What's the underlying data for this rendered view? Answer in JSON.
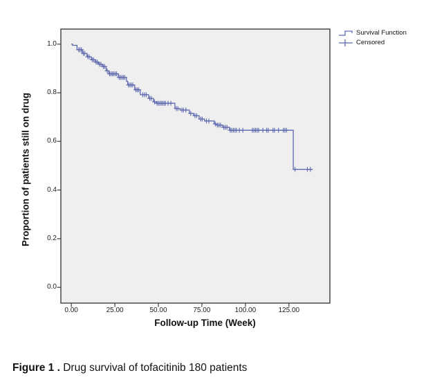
{
  "figure": {
    "caption_bold": "Figure 1 .",
    "caption_text": " Drug survival of tofacitinib 180 patients"
  },
  "legend": {
    "items": [
      {
        "symbol": "step-line",
        "label": "Survival Function"
      },
      {
        "symbol": "plus-cross",
        "label": "Censored"
      }
    ]
  },
  "chart_data": {
    "type": "line",
    "subtype": "kaplan-meier-step",
    "title": "",
    "xlabel": "Follow-up Time (Week)",
    "ylabel": "Proportion of patients still on drug",
    "xlim": [
      -6,
      148.5
    ],
    "ylim": [
      -0.065,
      1.062
    ],
    "x_ticks": [
      0,
      25,
      50,
      75,
      100,
      125
    ],
    "x_tick_labels": [
      "0.00",
      "25.00",
      "50.00",
      "75.00",
      "100.00",
      "125.00"
    ],
    "y_ticks": [
      0.0,
      0.2,
      0.4,
      0.6,
      0.8,
      1.0
    ],
    "y_tick_labels": [
      "0.0",
      "0.2",
      "0.4",
      "0.6",
      "0.8",
      "1.0"
    ],
    "grid": false,
    "legend_position": "top-right-outside",
    "plot_bg": "#efefef",
    "plot_border": "#3c3c3c",
    "series": [
      {
        "name": "Survival Function",
        "color": "#5b67ae",
        "end_week": 138.5,
        "steps": [
          [
            0,
            1.0
          ],
          [
            0.7,
            0.995
          ],
          [
            3.3,
            0.977
          ],
          [
            6.4,
            0.962
          ],
          [
            9.0,
            0.948
          ],
          [
            11.5,
            0.936
          ],
          [
            13.7,
            0.926
          ],
          [
            15.7,
            0.917
          ],
          [
            17.9,
            0.908
          ],
          [
            20.0,
            0.89
          ],
          [
            21.5,
            0.878
          ],
          [
            27.0,
            0.863
          ],
          [
            31.7,
            0.847
          ],
          [
            32.4,
            0.832
          ],
          [
            36.4,
            0.812
          ],
          [
            39.6,
            0.792
          ],
          [
            44.4,
            0.777
          ],
          [
            47.2,
            0.763
          ],
          [
            48.8,
            0.757
          ],
          [
            59.5,
            0.735
          ],
          [
            62.5,
            0.729
          ],
          [
            67.8,
            0.715
          ],
          [
            70.3,
            0.706
          ],
          [
            73.4,
            0.692
          ],
          [
            76.5,
            0.684
          ],
          [
            82.1,
            0.672
          ],
          [
            83.5,
            0.667
          ],
          [
            86.9,
            0.658
          ],
          [
            90.9,
            0.646
          ],
          [
            127.5,
            0.485
          ]
        ]
      }
    ],
    "censored": {
      "name": "Censored",
      "color": "#5b67ae",
      "points": [
        [
          4.2,
          0.977
        ],
        [
          5.0,
          0.977
        ],
        [
          5.8,
          0.977
        ],
        [
          6.9,
          0.962
        ],
        [
          7.7,
          0.962
        ],
        [
          9.5,
          0.948
        ],
        [
          10.3,
          0.948
        ],
        [
          12.0,
          0.936
        ],
        [
          12.8,
          0.936
        ],
        [
          14.2,
          0.926
        ],
        [
          15.0,
          0.926
        ],
        [
          16.2,
          0.917
        ],
        [
          17.0,
          0.917
        ],
        [
          18.4,
          0.908
        ],
        [
          19.2,
          0.908
        ],
        [
          20.6,
          0.89
        ],
        [
          22.0,
          0.878
        ],
        [
          22.8,
          0.878
        ],
        [
          23.6,
          0.878
        ],
        [
          24.4,
          0.878
        ],
        [
          25.2,
          0.878
        ],
        [
          26.0,
          0.878
        ],
        [
          27.5,
          0.863
        ],
        [
          28.3,
          0.863
        ],
        [
          29.1,
          0.863
        ],
        [
          29.9,
          0.863
        ],
        [
          30.7,
          0.863
        ],
        [
          32.9,
          0.832
        ],
        [
          33.7,
          0.832
        ],
        [
          34.5,
          0.832
        ],
        [
          35.3,
          0.832
        ],
        [
          37.1,
          0.812
        ],
        [
          37.9,
          0.812
        ],
        [
          38.7,
          0.812
        ],
        [
          41.0,
          0.792
        ],
        [
          42.0,
          0.792
        ],
        [
          43.0,
          0.792
        ],
        [
          45.1,
          0.777
        ],
        [
          45.9,
          0.777
        ],
        [
          47.8,
          0.763
        ],
        [
          49.3,
          0.757
        ],
        [
          50.1,
          0.757
        ],
        [
          50.9,
          0.757
        ],
        [
          51.7,
          0.757
        ],
        [
          52.5,
          0.757
        ],
        [
          53.3,
          0.757
        ],
        [
          54.1,
          0.757
        ],
        [
          55.6,
          0.757
        ],
        [
          57.2,
          0.757
        ],
        [
          60.3,
          0.735
        ],
        [
          61.2,
          0.735
        ],
        [
          63.5,
          0.729
        ],
        [
          64.4,
          0.729
        ],
        [
          65.8,
          0.729
        ],
        [
          68.6,
          0.715
        ],
        [
          71.0,
          0.706
        ],
        [
          72.0,
          0.706
        ],
        [
          74.3,
          0.692
        ],
        [
          75.2,
          0.692
        ],
        [
          77.6,
          0.684
        ],
        [
          79.0,
          0.684
        ],
        [
          82.7,
          0.672
        ],
        [
          83.9,
          0.667
        ],
        [
          84.8,
          0.667
        ],
        [
          85.7,
          0.667
        ],
        [
          87.6,
          0.658
        ],
        [
          88.5,
          0.658
        ],
        [
          89.4,
          0.658
        ],
        [
          91.3,
          0.646
        ],
        [
          92.2,
          0.646
        ],
        [
          93.1,
          0.646
        ],
        [
          94.0,
          0.646
        ],
        [
          94.9,
          0.646
        ],
        [
          96.5,
          0.646
        ],
        [
          98.5,
          0.646
        ],
        [
          104.0,
          0.646
        ],
        [
          104.9,
          0.646
        ],
        [
          105.8,
          0.646
        ],
        [
          106.7,
          0.646
        ],
        [
          107.6,
          0.646
        ],
        [
          110.0,
          0.646
        ],
        [
          112.2,
          0.646
        ],
        [
          113.1,
          0.646
        ],
        [
          115.8,
          0.646
        ],
        [
          116.7,
          0.646
        ],
        [
          119.0,
          0.646
        ],
        [
          121.8,
          0.646
        ],
        [
          122.7,
          0.646
        ],
        [
          123.6,
          0.646
        ],
        [
          128.5,
          0.485
        ],
        [
          135.6,
          0.485
        ],
        [
          137.3,
          0.485
        ]
      ]
    }
  }
}
